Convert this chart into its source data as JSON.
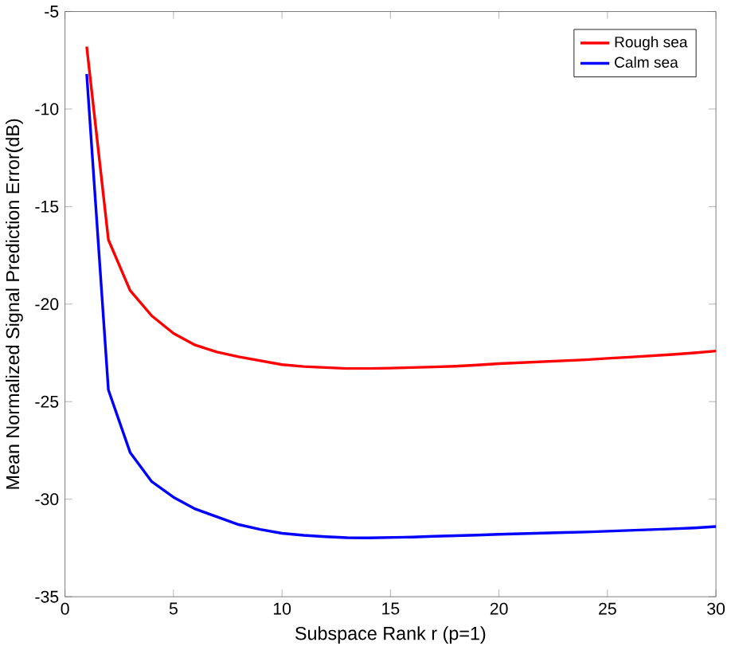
{
  "chart_data": {
    "type": "line",
    "xlabel": "Subspace Rank r (p=1)",
    "ylabel": "Mean Normalized Signal Prediction Error(dB)",
    "x": [
      1,
      2,
      3,
      4,
      5,
      6,
      7,
      8,
      9,
      10,
      11,
      12,
      13,
      14,
      15,
      16,
      17,
      18,
      19,
      20,
      21,
      22,
      23,
      24,
      25,
      26,
      27,
      28,
      29,
      30
    ],
    "series": [
      {
        "name": "Rough sea",
        "color": "#ff0000",
        "values": [
          -6.8,
          -16.7,
          -19.3,
          -20.6,
          -21.5,
          -22.1,
          -22.45,
          -22.7,
          -22.9,
          -23.1,
          -23.2,
          -23.25,
          -23.3,
          -23.3,
          -23.28,
          -23.25,
          -23.22,
          -23.18,
          -23.12,
          -23.05,
          -23.0,
          -22.95,
          -22.9,
          -22.85,
          -22.78,
          -22.72,
          -22.65,
          -22.58,
          -22.5,
          -22.4
        ]
      },
      {
        "name": "Calm sea",
        "color": "#0000ff",
        "values": [
          -8.2,
          -24.4,
          -27.6,
          -29.1,
          -29.9,
          -30.5,
          -30.9,
          -31.3,
          -31.55,
          -31.75,
          -31.85,
          -31.92,
          -31.97,
          -31.98,
          -31.96,
          -31.94,
          -31.9,
          -31.87,
          -31.84,
          -31.8,
          -31.77,
          -31.74,
          -31.71,
          -31.68,
          -31.64,
          -31.6,
          -31.56,
          -31.52,
          -31.47,
          -31.4
        ]
      }
    ],
    "xlim": [
      0,
      30
    ],
    "xticks": [
      0,
      5,
      10,
      15,
      20,
      25,
      30
    ],
    "ylim": [
      -35,
      -5
    ],
    "yticks": [
      -35,
      -30,
      -25,
      -20,
      -15,
      -10,
      -5
    ],
    "grid": false,
    "legend": "top right",
    "marker": "none",
    "line_style": "solid"
  }
}
